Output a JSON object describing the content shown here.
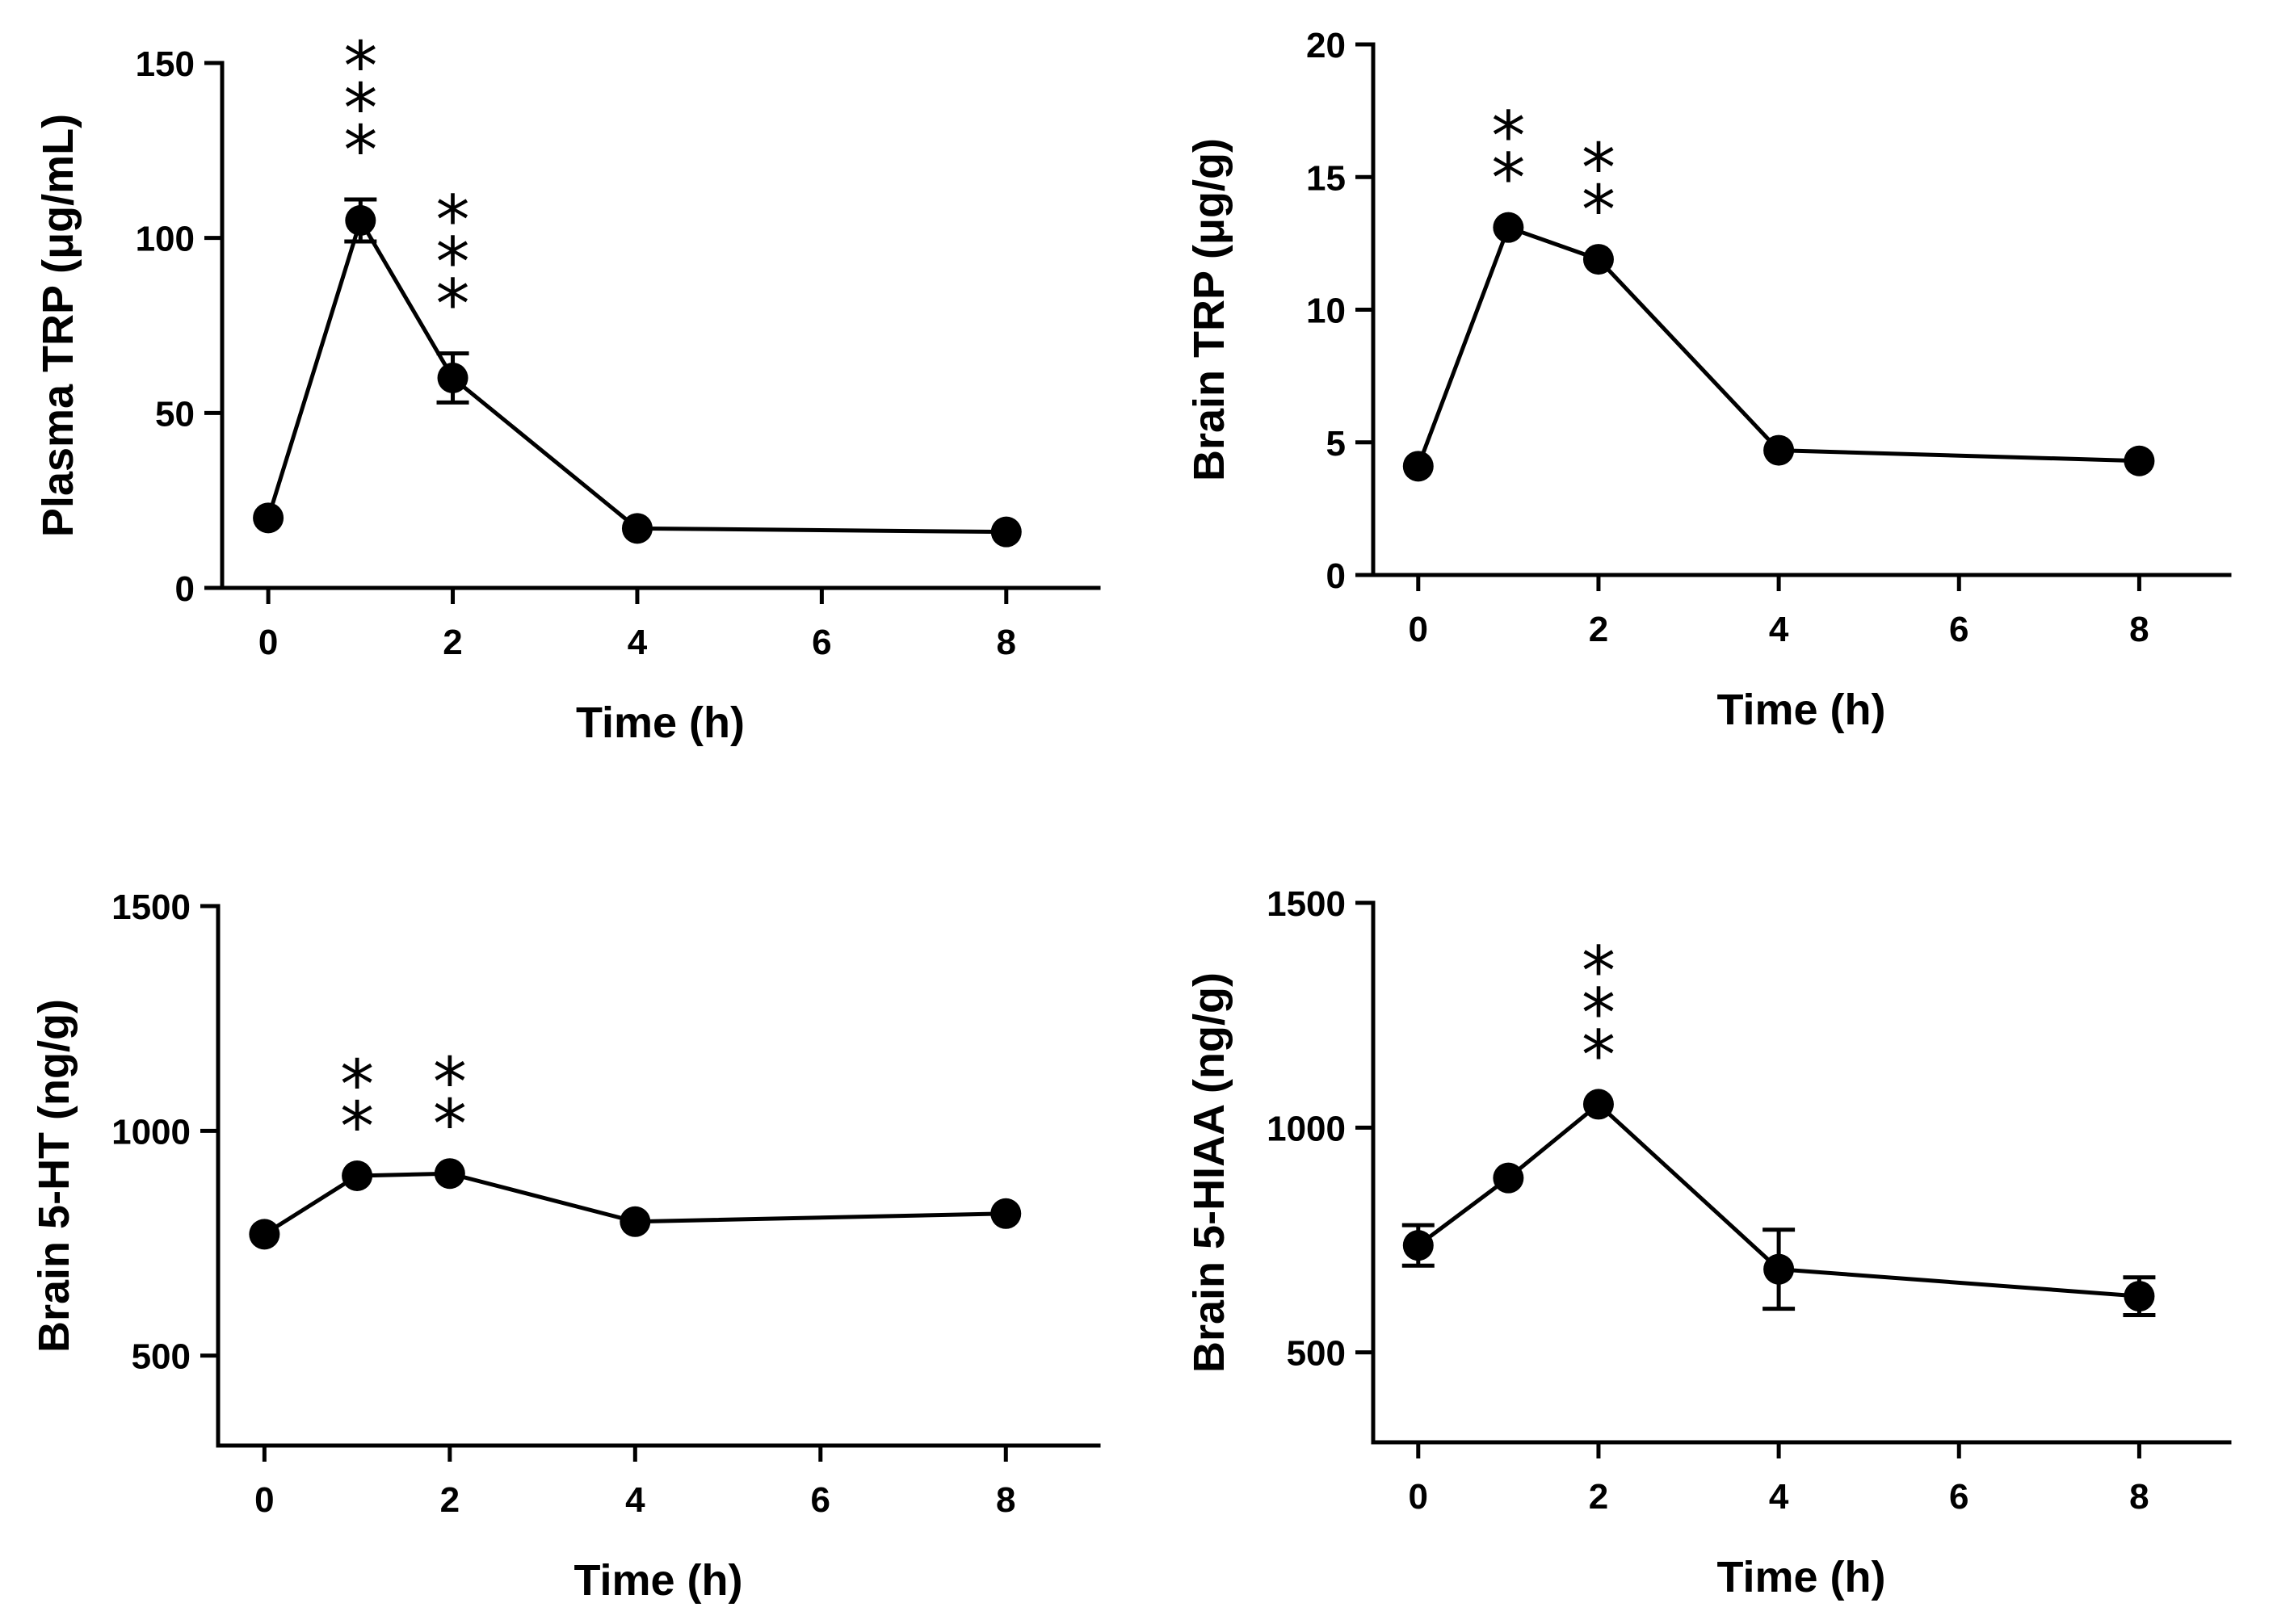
{
  "chart_data": [
    {
      "id": "plasma-trp",
      "type": "line",
      "xlabel": "Time (h)",
      "ylabel": "Plasma TRP (μg/mL)",
      "x": [
        0,
        1,
        2,
        4,
        8
      ],
      "y": [
        20,
        105,
        60,
        17,
        16
      ],
      "err": [
        0,
        6,
        7,
        0,
        0
      ],
      "xticks": [
        0,
        2,
        4,
        6,
        8
      ],
      "yticks": [
        0,
        50,
        100,
        150
      ],
      "xlim": [
        -0.5,
        9
      ],
      "ylim": [
        0,
        150
      ],
      "significance": [
        {
          "x": 1,
          "label": "***"
        },
        {
          "x": 2,
          "label": "***"
        }
      ]
    },
    {
      "id": "brain-trp",
      "type": "line",
      "xlabel": "Time (h)",
      "ylabel": "Brain TRP (μg/g)",
      "x": [
        0,
        1,
        2,
        4,
        8
      ],
      "y": [
        4.1,
        13.1,
        11.9,
        4.7,
        4.3
      ],
      "err": [
        0,
        0,
        0,
        0,
        0
      ],
      "xticks": [
        0,
        2,
        4,
        6,
        8
      ],
      "yticks": [
        0,
        5,
        10,
        15,
        20
      ],
      "xlim": [
        -0.5,
        9
      ],
      "ylim": [
        0,
        20
      ],
      "significance": [
        {
          "x": 1,
          "label": "**"
        },
        {
          "x": 2,
          "label": "**"
        }
      ]
    },
    {
      "id": "brain-5ht",
      "type": "line",
      "xlabel": "Time (h)",
      "ylabel": "Brain 5-HT (ng/g)",
      "x": [
        0,
        1,
        2,
        4,
        8
      ],
      "y": [
        770,
        900,
        905,
        798,
        816
      ],
      "err": [
        0,
        0,
        0,
        0,
        0
      ],
      "xticks": [
        0,
        2,
        4,
        6,
        8
      ],
      "yticks": [
        500,
        1000,
        1500
      ],
      "xlim": [
        -0.5,
        9
      ],
      "ylim": [
        300,
        1500
      ],
      "significance": [
        {
          "x": 1,
          "label": "**"
        },
        {
          "x": 2,
          "label": "**"
        }
      ]
    },
    {
      "id": "brain-5hiaa",
      "type": "line",
      "xlabel": "Time (h)",
      "ylabel": "Brain 5-HIAA (ng/g)",
      "x": [
        0,
        1,
        2,
        4,
        8
      ],
      "y": [
        738,
        888,
        1052,
        685,
        625
      ],
      "err": [
        45,
        0,
        0,
        88,
        42
      ],
      "xticks": [
        0,
        2,
        4,
        6,
        8
      ],
      "yticks": [
        500,
        1000,
        1500
      ],
      "xlim": [
        -0.5,
        9
      ],
      "ylim": [
        300,
        1500
      ],
      "significance": [
        {
          "x": 2,
          "label": "***"
        }
      ]
    }
  ]
}
